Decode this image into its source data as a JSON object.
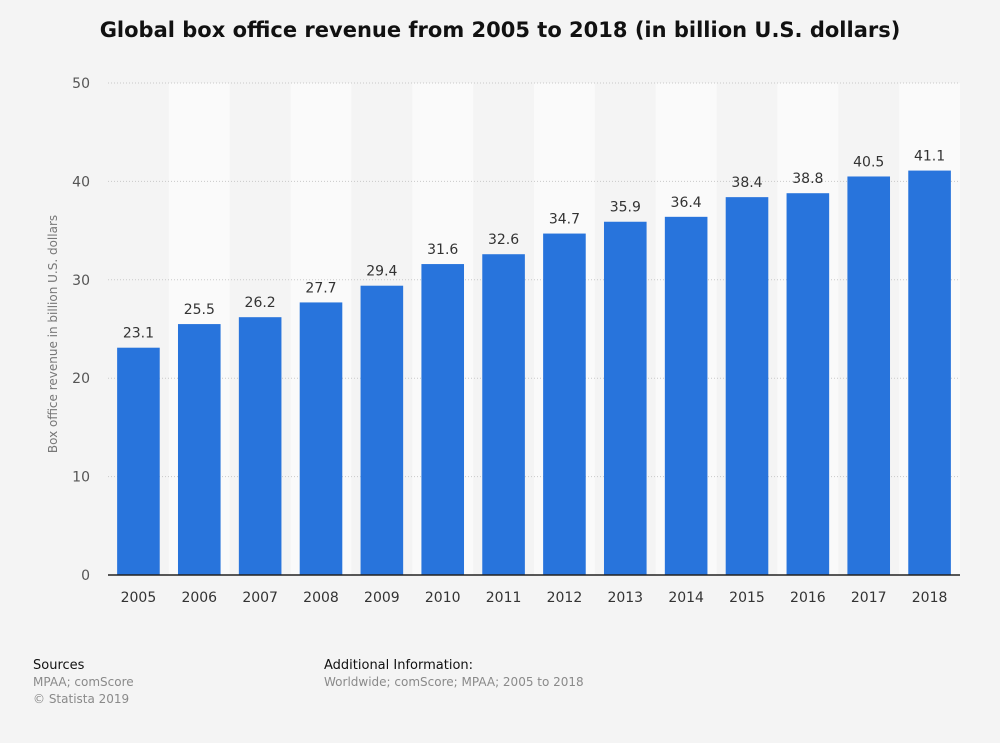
{
  "chart_data": {
    "type": "bar",
    "title": "Global box office revenue from 2005 to 2018 (in billion U.S. dollars)",
    "xlabel": "",
    "ylabel": "Box office revenue in billion U.S. dollars",
    "categories": [
      "2005",
      "2006",
      "2007",
      "2008",
      "2009",
      "2010",
      "2011",
      "2012",
      "2013",
      "2014",
      "2015",
      "2016",
      "2017",
      "2018"
    ],
    "values": [
      23.1,
      25.5,
      26.2,
      27.7,
      29.4,
      31.6,
      32.6,
      34.7,
      35.9,
      36.4,
      38.4,
      38.8,
      40.5,
      41.1
    ],
    "data_labels": [
      "23.1",
      "25.5",
      "26.2",
      "27.7",
      "29.4",
      "31.6",
      "32.6",
      "34.7",
      "35.9",
      "36.4",
      "38.4",
      "38.8",
      "40.5",
      "41.1"
    ],
    "ylim": [
      0,
      50
    ],
    "yticks": [
      0,
      10,
      20,
      30,
      40,
      50
    ],
    "grid": true,
    "bar_color": "#2874dc"
  },
  "footer": {
    "sources_heading": "Sources",
    "sources_line1": "MPAA; comScore",
    "sources_line2": "© Statista 2019",
    "additional_heading": "Additional Information:",
    "additional_text": "Worldwide; comScore; MPAA; 2005 to 2018"
  }
}
